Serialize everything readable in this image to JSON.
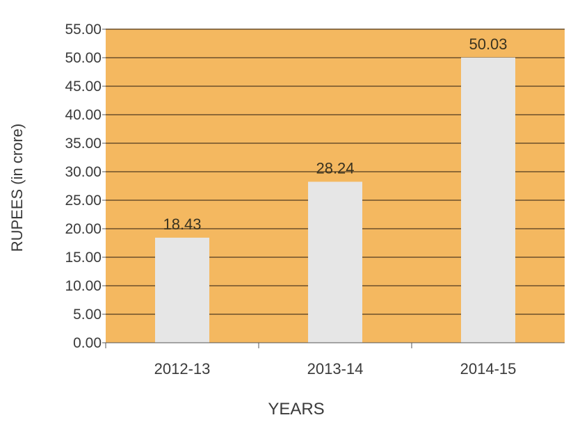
{
  "chart_data": {
    "type": "bar",
    "title": "",
    "xlabel": "YEARS",
    "ylabel": "RUPEES (in crore)",
    "categories": [
      "2012-13",
      "2013-14",
      "2014-15"
    ],
    "values": [
      18.43,
      28.24,
      50.03
    ],
    "data_labels": [
      "18.43",
      "28.24",
      "50.03"
    ],
    "ylim": [
      0,
      55
    ],
    "yticks": [
      "0.00",
      "5.00",
      "10.00",
      "15.00",
      "20.00",
      "25.00",
      "30.00",
      "35.00",
      "40.00",
      "45.00",
      "50.00",
      "55.00"
    ],
    "grid": true,
    "colors": {
      "plot_background": "#f4b860",
      "bar": "#e6e6e6",
      "gridline": "#6b4f2a",
      "axis": "#555555"
    }
  }
}
